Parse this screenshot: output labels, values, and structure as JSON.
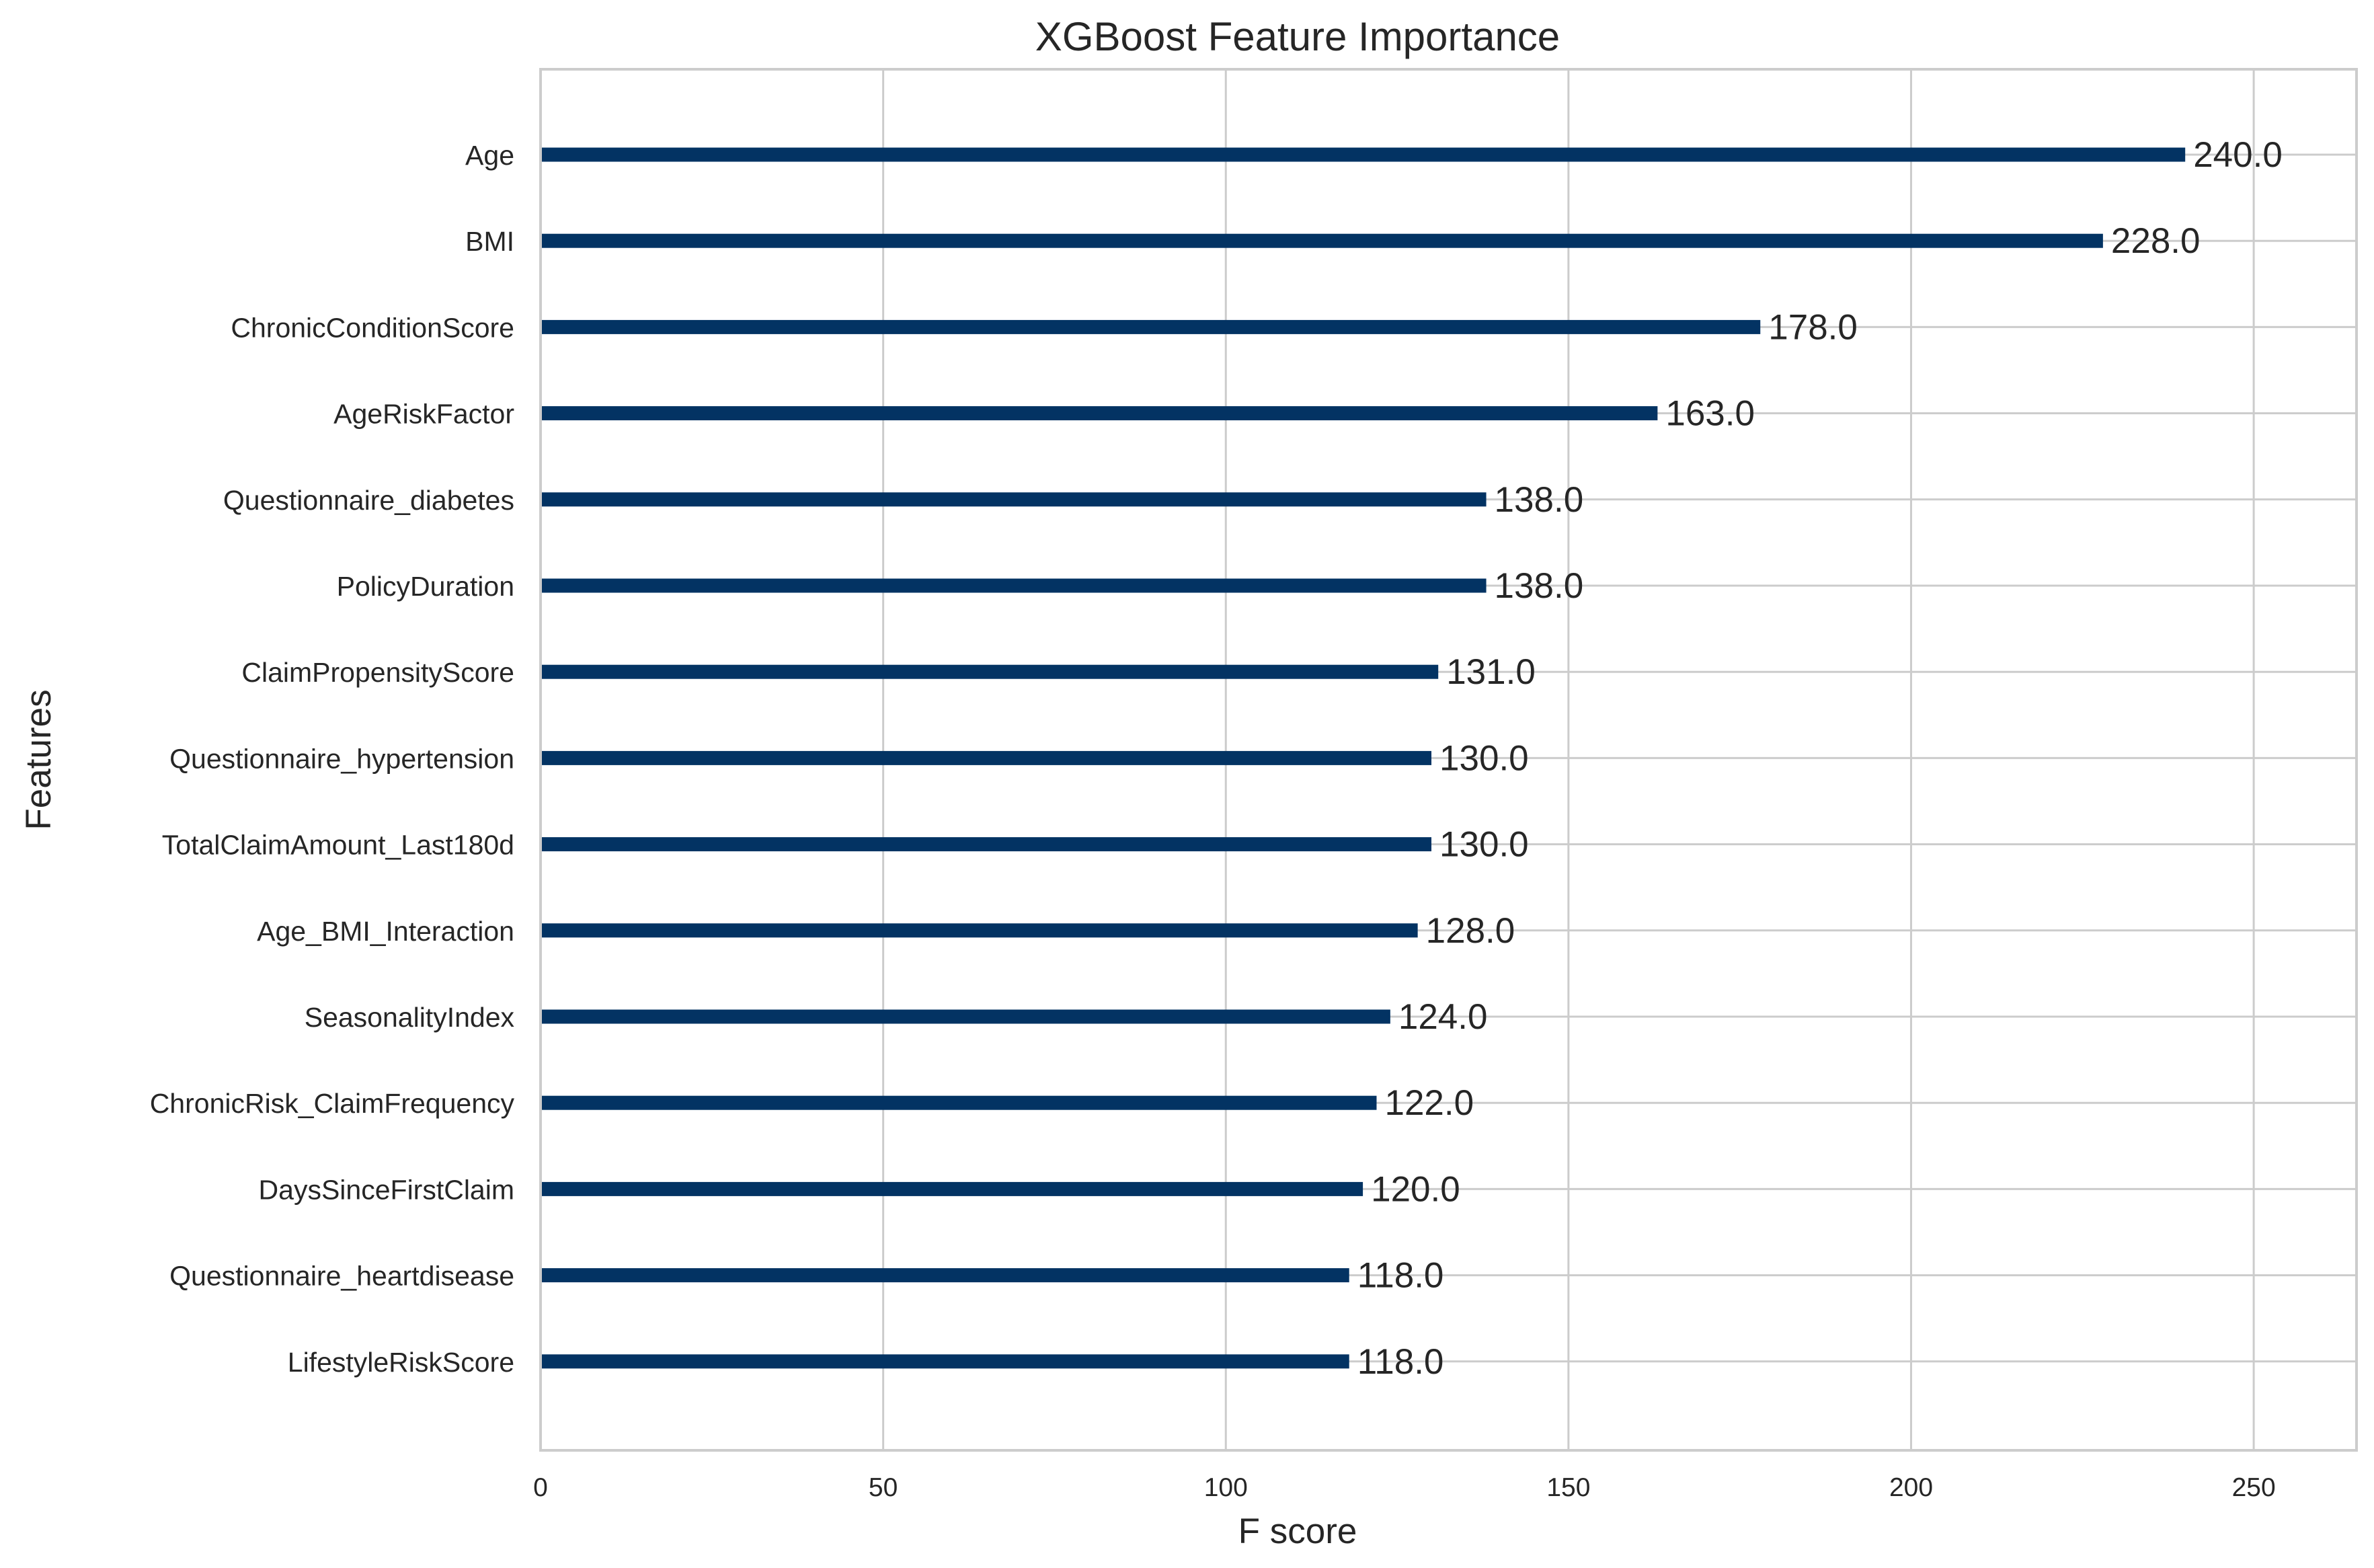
{
  "chart_data": {
    "type": "bar",
    "orientation": "horizontal",
    "title": "XGBoost Feature Importance",
    "xlabel": "F score",
    "ylabel": "Features",
    "xlim": [
      0,
      265
    ],
    "xticks": [
      0,
      50,
      100,
      150,
      200,
      250
    ],
    "grid": true,
    "categories": [
      "Age",
      "BMI",
      "ChronicConditionScore",
      "AgeRiskFactor",
      "Questionnaire_diabetes",
      "PolicyDuration",
      "ClaimPropensityScore",
      "Questionnaire_hypertension",
      "TotalClaimAmount_Last180d",
      "Age_BMI_Interaction",
      "SeasonalityIndex",
      "ChronicRisk_ClaimFrequency",
      "DaysSinceFirstClaim",
      "Questionnaire_heartdisease",
      "LifestyleRiskScore"
    ],
    "values": [
      240,
      228,
      178,
      163,
      138,
      138,
      131,
      130,
      130,
      128,
      124,
      122,
      120,
      118,
      118
    ],
    "value_labels": [
      "240.0",
      "228.0",
      "178.0",
      "163.0",
      "138.0",
      "138.0",
      "131.0",
      "130.0",
      "130.0",
      "128.0",
      "124.0",
      "122.0",
      "120.0",
      "118.0",
      "118.0"
    ],
    "bar_color": "#033363",
    "grid_color": "#cccccc",
    "frame_color": "#cccccc",
    "text_color": "#262626"
  }
}
